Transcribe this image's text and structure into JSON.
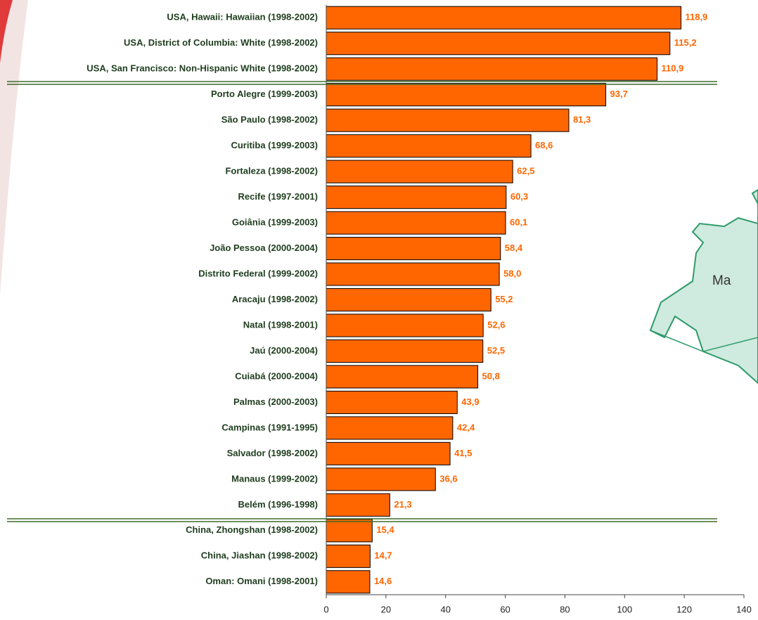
{
  "chart_data": {
    "type": "bar",
    "orientation": "horizontal",
    "categories": [
      "USA, Hawaii: Hawaiian (1998-2002)",
      "USA, District of Columbia: White (1998-2002)",
      "USA, San Francisco: Non-Hispanic White (1998-2002)",
      "Porto Alegre (1999-2003)",
      "São Paulo (1998-2002)",
      "Curitiba (1999-2003)",
      "Fortaleza (1998-2002)",
      "Recife (1997-2001)",
      "Goiânia (1999-2003)",
      "João Pessoa (2000-2004)",
      "Distrito Federal (1999-2002)",
      "Aracaju (1998-2002)",
      "Natal (1998-2001)",
      "Jaú (2000-2004)",
      "Cuiabá (2000-2004)",
      "Palmas (2000-2003)",
      "Campinas (1991-1995)",
      "Salvador (1998-2002)",
      "Manaus (1999-2002)",
      "Belém (1996-1998)",
      "China, Zhongshan (1998-2002)",
      "China, Jiashan (1998-2002)",
      "Oman: Omani (1998-2001)"
    ],
    "values": [
      118.9,
      115.2,
      110.9,
      93.7,
      81.3,
      68.6,
      62.5,
      60.3,
      60.1,
      58.4,
      58.0,
      55.2,
      52.6,
      52.5,
      50.8,
      43.9,
      42.4,
      41.5,
      36.6,
      21.3,
      15.4,
      14.7,
      14.6
    ],
    "value_labels": [
      "118,9",
      "115,2",
      "110,9",
      "93,7",
      "81,3",
      "68,6",
      "62,5",
      "60,3",
      "60,1",
      "58,4",
      "58,0",
      "55,2",
      "52,6",
      "52,5",
      "50,8",
      "43,9",
      "42,4",
      "41,5",
      "36,6",
      "21,3",
      "15,4",
      "14,7",
      "14,6"
    ],
    "color": "#ff6600",
    "xlim": [
      0,
      140
    ],
    "xticks": [
      0,
      20,
      40,
      60,
      80,
      100,
      120,
      140
    ],
    "map_label": "Ma"
  }
}
